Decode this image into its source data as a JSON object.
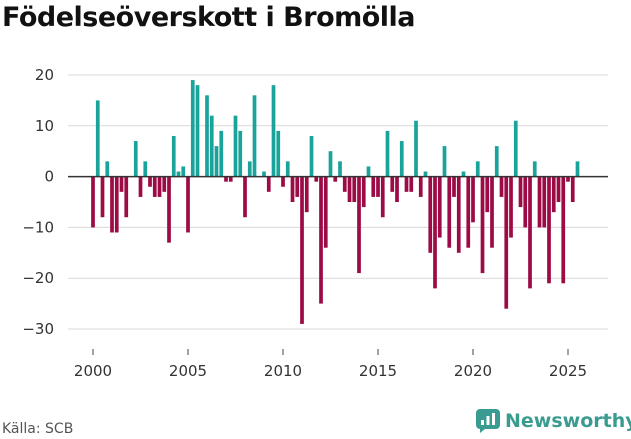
{
  "header": {
    "title": "Födelseöverskott i Bromölla"
  },
  "footer": {
    "source": "Källa: SCB",
    "brand": "Newsworthy"
  },
  "colors": {
    "positive": "#1aa39a",
    "negative": "#9c0b45",
    "grid": "#d9d9d9",
    "zero_line": "#333333",
    "brand": "#3a9b91"
  },
  "chart_data": {
    "type": "bar",
    "title": "Födelseöverskott i Bromölla",
    "xlabel": "",
    "ylabel": "",
    "ylim": [
      -33,
      22
    ],
    "yticks": [
      20,
      10,
      0,
      -10,
      -20,
      -30
    ],
    "ytick_labels": [
      "20",
      "10",
      "0",
      "−10",
      "−20",
      "−30"
    ],
    "xticks": [
      2000,
      2005,
      2010,
      2015,
      2020,
      2025
    ],
    "xtick_labels": [
      "2000",
      "2005",
      "2010",
      "2015",
      "2020",
      "2025"
    ],
    "grid": true,
    "frequency": "quarterly",
    "start": 2000.0,
    "step": 0.25,
    "values": [
      -10,
      15,
      -8,
      3,
      -11,
      -11,
      -3,
      -8,
      0,
      7,
      -4,
      3,
      -2,
      -4,
      -4,
      -3,
      -13,
      8,
      1,
      2,
      -11,
      19,
      18,
      0,
      16,
      12,
      6,
      9,
      -1,
      -1,
      12,
      9,
      -8,
      3,
      16,
      0,
      1,
      -3,
      18,
      9,
      -2,
      3,
      -5,
      -4,
      -29,
      -7,
      8,
      -1,
      -25,
      -14,
      5,
      -1,
      3,
      -3,
      -5,
      -5,
      -19,
      -6,
      2,
      -4,
      -4,
      -8,
      9,
      -3,
      -5,
      7,
      -3,
      -3,
      11,
      -4,
      1,
      -15,
      -22,
      -12,
      6,
      -14,
      -4,
      -15,
      1,
      -14,
      -9,
      3,
      -19,
      -7,
      -14,
      6,
      -4,
      -26,
      -12,
      11,
      -6,
      -10,
      -22,
      3,
      -10,
      -10,
      -21,
      -7,
      -5,
      -21,
      -1,
      -5,
      3
    ]
  }
}
